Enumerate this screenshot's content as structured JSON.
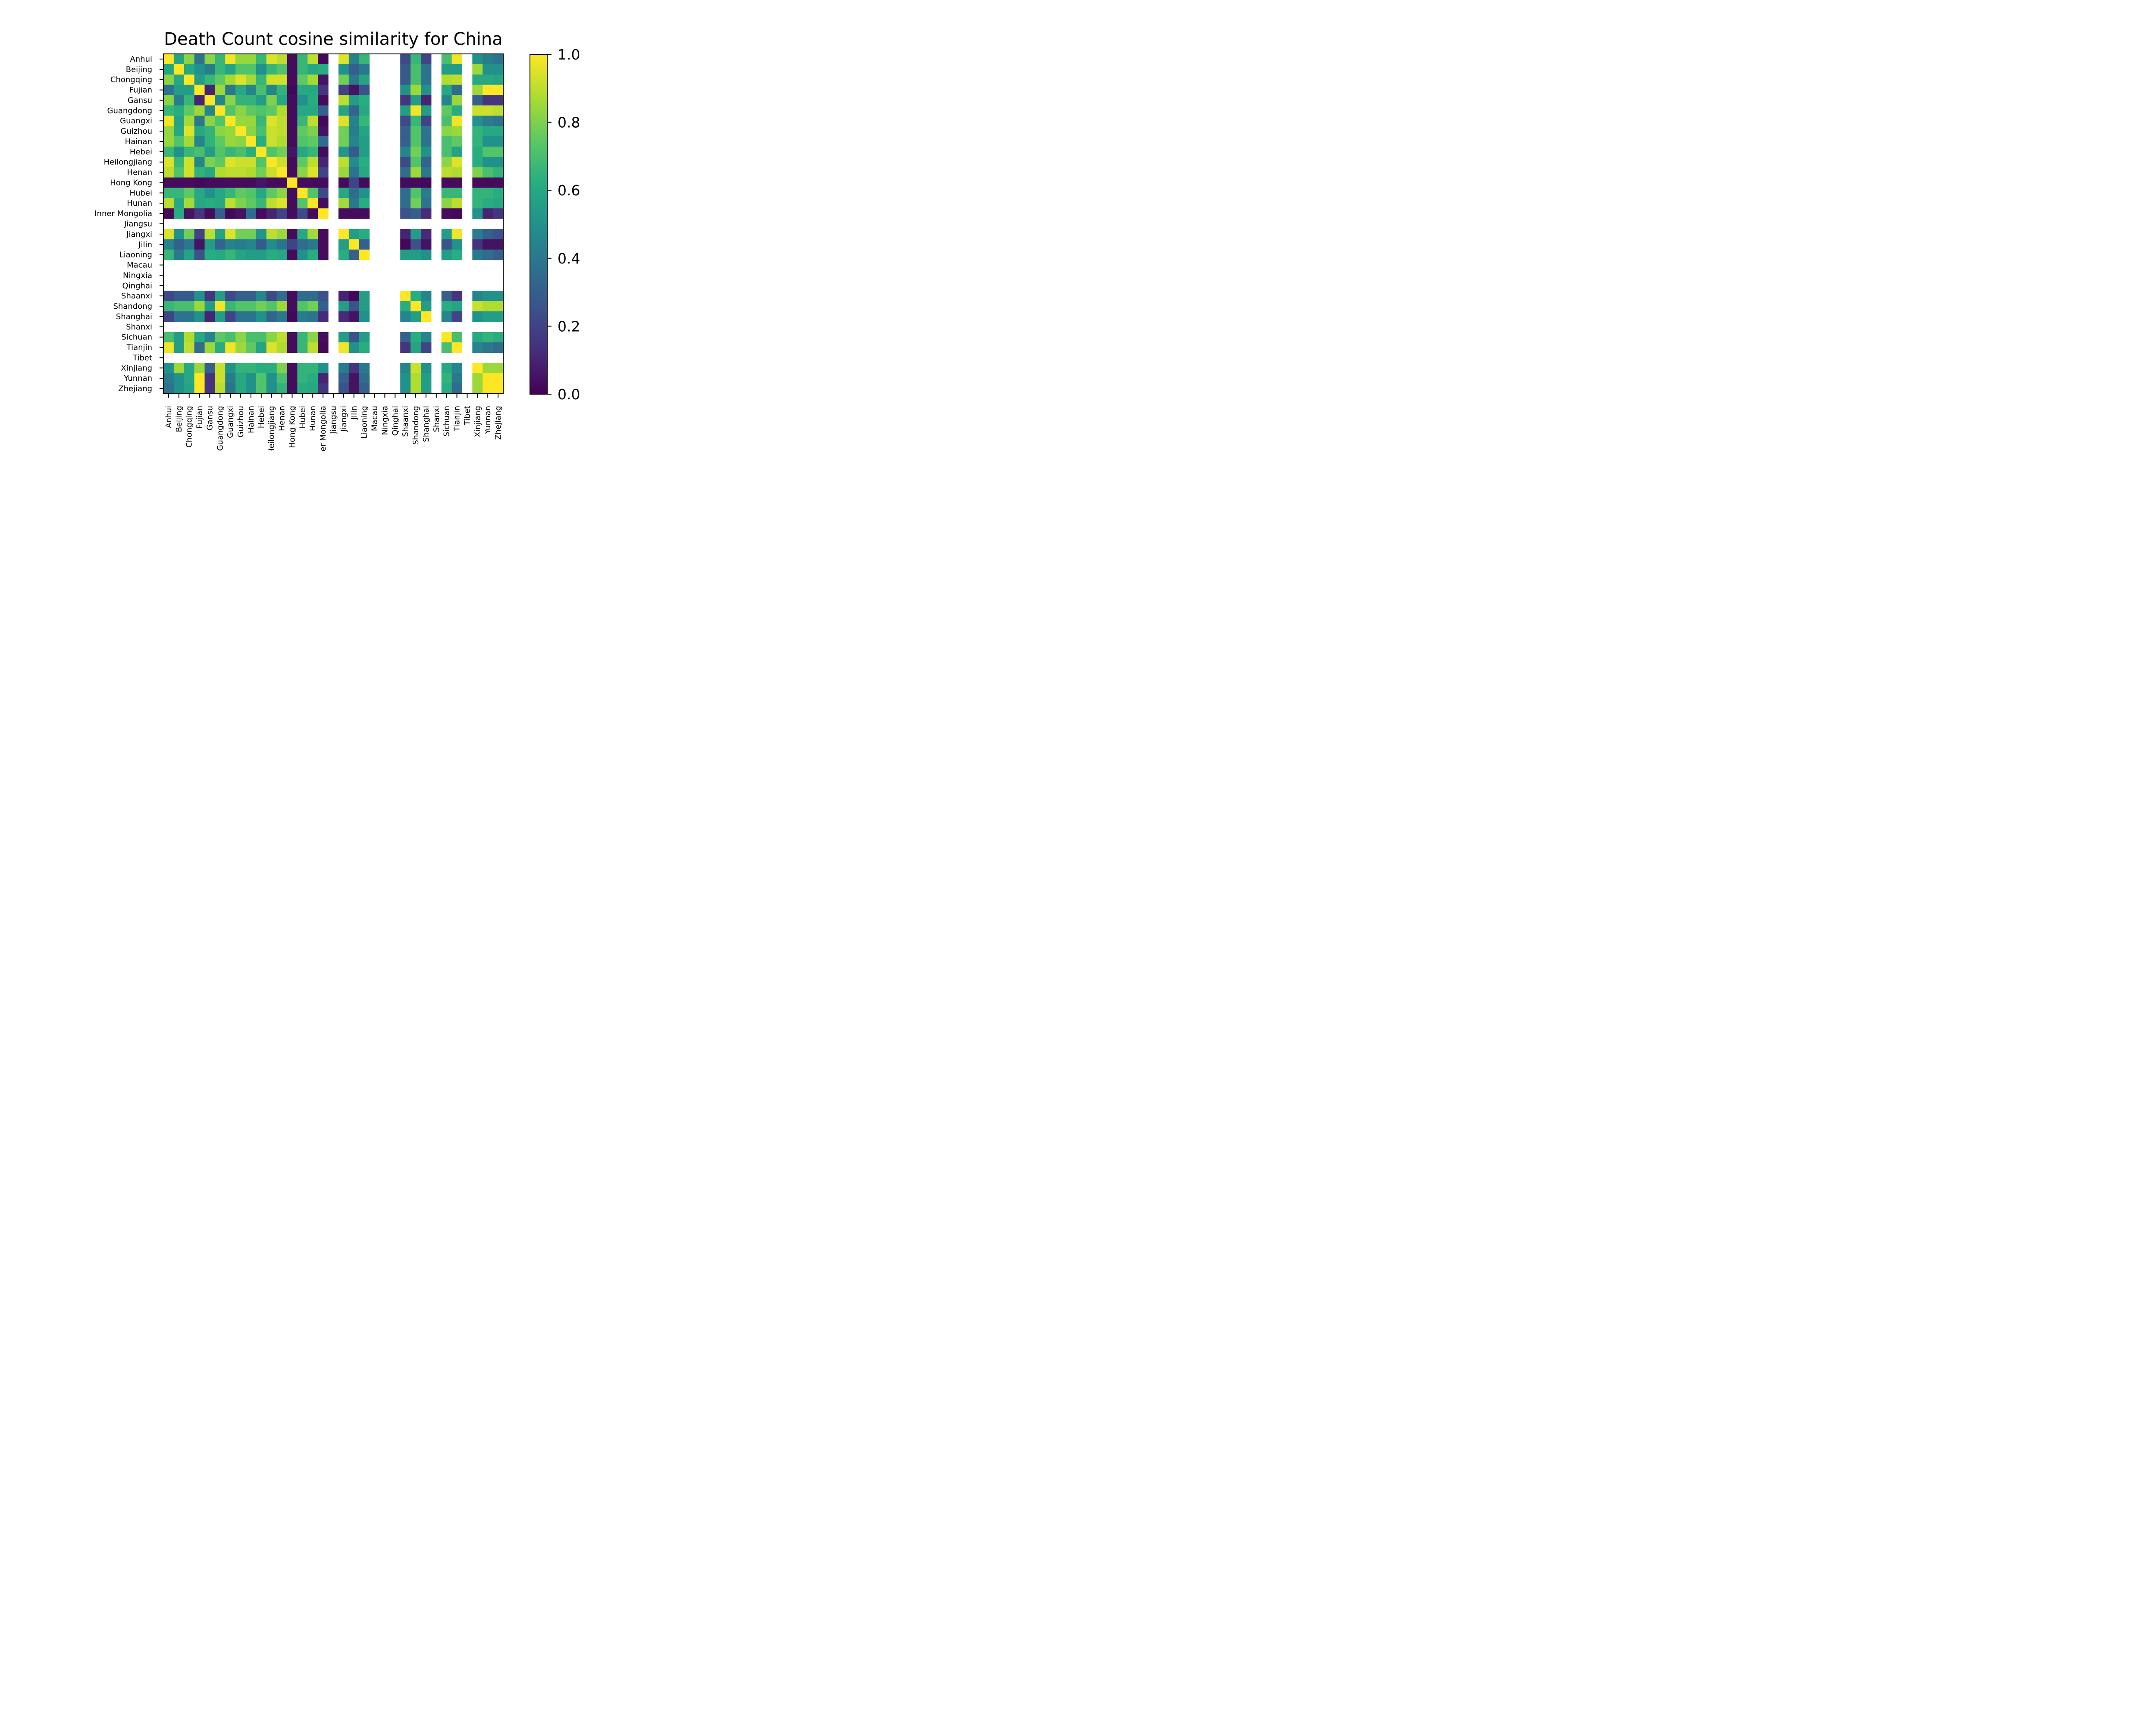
{
  "chart_data": {
    "type": "heatmap",
    "title": "Death Count cosine similarity for China",
    "labels": [
      "Anhui",
      "Beijing",
      "Chongqing",
      "Fujian",
      "Gansu",
      "Guangdong",
      "Guangxi",
      "Guizhou",
      "Hainan",
      "Hebei",
      "Heilongjiang",
      "Henan",
      "Hong Kong",
      "Hubei",
      "Hunan",
      "Inner Mongolia",
      "Jiangsu",
      "Jiangxi",
      "Jilin",
      "Liaoning",
      "Macau",
      "Ningxia",
      "Qinghai",
      "Shaanxi",
      "Shandong",
      "Shanghai",
      "Shanxi",
      "Sichuan",
      "Tianjin",
      "Tibet",
      "Xinjiang",
      "Yunnan",
      "Zhejiang"
    ],
    "colorbar": {
      "min": 0.0,
      "max": 1.0,
      "ticks": [
        "0.0",
        "0.2",
        "0.4",
        "0.6",
        "0.8",
        "1.0"
      ]
    },
    "colormap": "viridis",
    "missing_rows": [
      "Jiangsu",
      "Macau",
      "Ningxia",
      "Qinghai",
      "Shanxi",
      "Tibet"
    ],
    "values": [
      [
        1.0,
        0.58,
        0.82,
        0.38,
        0.82,
        0.66,
        0.98,
        0.84,
        0.84,
        0.66,
        0.95,
        0.9,
        0.03,
        0.66,
        0.9,
        0.02,
        null,
        0.95,
        0.44,
        0.66,
        null,
        null,
        null,
        0.22,
        0.66,
        0.2,
        null,
        0.7,
        0.98,
        null,
        0.5,
        0.42,
        0.38
      ],
      [
        0.58,
        1.0,
        0.6,
        0.5,
        0.42,
        0.66,
        0.58,
        0.72,
        0.72,
        0.5,
        0.66,
        0.72,
        0.03,
        0.66,
        0.6,
        0.62,
        null,
        0.5,
        0.3,
        0.4,
        null,
        null,
        null,
        0.28,
        0.7,
        0.38,
        null,
        0.55,
        0.55,
        null,
        0.85,
        0.5,
        0.5
      ],
      [
        0.82,
        0.6,
        1.0,
        0.55,
        0.66,
        0.75,
        0.86,
        0.95,
        0.86,
        0.66,
        0.93,
        0.93,
        0.03,
        0.75,
        0.86,
        0.05,
        null,
        0.78,
        0.4,
        0.58,
        null,
        null,
        null,
        0.28,
        0.7,
        0.38,
        null,
        0.88,
        0.9,
        null,
        0.6,
        0.6,
        0.58
      ],
      [
        0.38,
        0.55,
        0.55,
        1.0,
        0.1,
        0.85,
        0.4,
        0.6,
        0.45,
        0.7,
        0.45,
        0.65,
        0.02,
        0.6,
        0.6,
        0.15,
        null,
        0.2,
        0.05,
        0.25,
        null,
        null,
        null,
        0.5,
        0.85,
        0.5,
        null,
        0.6,
        0.35,
        null,
        0.85,
        1.0,
        1.0
      ],
      [
        0.82,
        0.42,
        0.66,
        0.1,
        1.0,
        0.45,
        0.82,
        0.65,
        0.65,
        0.55,
        0.8,
        0.6,
        0.03,
        0.5,
        0.62,
        0.03,
        null,
        0.9,
        0.55,
        0.62,
        null,
        null,
        null,
        0.15,
        0.55,
        0.1,
        null,
        0.45,
        0.85,
        null,
        0.3,
        0.15,
        0.15
      ],
      [
        0.66,
        0.62,
        0.75,
        0.85,
        0.45,
        1.0,
        0.72,
        0.82,
        0.75,
        0.72,
        0.75,
        0.88,
        0.03,
        0.6,
        0.6,
        0.3,
        null,
        0.58,
        0.32,
        0.6,
        null,
        null,
        null,
        0.55,
        0.98,
        0.55,
        null,
        0.75,
        0.62,
        null,
        0.92,
        0.92,
        0.9
      ],
      [
        0.98,
        0.58,
        0.86,
        0.4,
        0.82,
        0.72,
        1.0,
        0.84,
        0.84,
        0.66,
        0.95,
        0.9,
        0.03,
        0.66,
        0.9,
        0.02,
        null,
        0.95,
        0.44,
        0.66,
        null,
        null,
        null,
        0.22,
        0.66,
        0.2,
        null,
        0.7,
        0.98,
        null,
        0.5,
        0.42,
        0.38
      ],
      [
        0.84,
        0.6,
        0.95,
        0.6,
        0.65,
        0.82,
        0.84,
        1.0,
        0.82,
        0.7,
        0.92,
        0.9,
        0.03,
        0.75,
        0.8,
        0.05,
        null,
        0.78,
        0.42,
        0.58,
        null,
        null,
        null,
        0.3,
        0.72,
        0.38,
        null,
        0.82,
        0.85,
        null,
        0.65,
        0.6,
        0.6
      ],
      [
        0.84,
        0.72,
        0.86,
        0.45,
        0.65,
        0.75,
        0.84,
        0.82,
        1.0,
        0.62,
        0.92,
        0.88,
        0.03,
        0.72,
        0.75,
        0.35,
        null,
        0.78,
        0.45,
        0.55,
        null,
        null,
        null,
        0.3,
        0.72,
        0.38,
        null,
        0.7,
        0.75,
        null,
        0.65,
        0.5,
        0.5
      ],
      [
        0.66,
        0.5,
        0.66,
        0.7,
        0.55,
        0.72,
        0.66,
        0.7,
        0.62,
        1.0,
        0.72,
        0.78,
        0.06,
        0.6,
        0.66,
        0.03,
        null,
        0.52,
        0.28,
        0.55,
        null,
        null,
        null,
        0.45,
        0.78,
        0.5,
        null,
        0.7,
        0.58,
        null,
        0.62,
        0.72,
        0.72
      ],
      [
        0.95,
        0.66,
        0.93,
        0.45,
        0.8,
        0.75,
        0.95,
        0.92,
        0.92,
        0.72,
        1.0,
        0.92,
        0.03,
        0.75,
        0.9,
        0.1,
        null,
        0.9,
        0.48,
        0.62,
        null,
        null,
        null,
        0.22,
        0.72,
        0.32,
        null,
        0.82,
        0.95,
        null,
        0.62,
        0.5,
        0.5
      ],
      [
        0.9,
        0.72,
        0.93,
        0.65,
        0.6,
        0.88,
        0.9,
        0.9,
        0.88,
        0.78,
        0.92,
        1.0,
        0.03,
        0.82,
        0.95,
        0.2,
        null,
        0.85,
        0.38,
        0.6,
        null,
        null,
        null,
        0.35,
        0.85,
        0.4,
        null,
        0.9,
        0.88,
        null,
        0.8,
        0.7,
        0.65
      ],
      [
        0.03,
        0.03,
        0.03,
        0.02,
        0.03,
        0.03,
        0.03,
        0.03,
        0.03,
        0.06,
        0.03,
        0.03,
        1.0,
        0.03,
        0.03,
        0.03,
        null,
        0.03,
        0.2,
        0.03,
        null,
        null,
        null,
        0.03,
        0.03,
        0.02,
        null,
        0.03,
        0.03,
        null,
        0.03,
        0.03,
        0.03
      ],
      [
        0.66,
        0.66,
        0.75,
        0.6,
        0.5,
        0.6,
        0.66,
        0.75,
        0.72,
        0.6,
        0.75,
        0.82,
        0.03,
        1.0,
        0.72,
        0.22,
        null,
        0.6,
        0.35,
        0.5,
        null,
        null,
        null,
        0.35,
        0.72,
        0.42,
        null,
        0.66,
        0.66,
        null,
        0.65,
        0.65,
        0.62
      ],
      [
        0.9,
        0.6,
        0.86,
        0.6,
        0.62,
        0.6,
        0.9,
        0.8,
        0.75,
        0.66,
        0.9,
        0.95,
        0.03,
        0.72,
        1.0,
        0.03,
        null,
        0.86,
        0.4,
        0.62,
        null,
        null,
        null,
        0.35,
        0.78,
        0.38,
        null,
        0.82,
        0.9,
        null,
        0.65,
        0.62,
        0.6
      ],
      [
        0.02,
        0.62,
        0.05,
        0.15,
        0.03,
        0.3,
        0.02,
        0.05,
        0.35,
        0.03,
        0.1,
        0.2,
        0.03,
        0.22,
        0.03,
        1.0,
        null,
        0.03,
        0.03,
        0.03,
        null,
        null,
        null,
        0.25,
        0.3,
        0.12,
        null,
        0.03,
        0.02,
        null,
        0.5,
        0.1,
        0.15
      ],
      [
        null,
        null,
        null,
        null,
        null,
        null,
        null,
        null,
        null,
        null,
        null,
        null,
        null,
        null,
        null,
        null,
        null,
        null,
        null,
        null,
        null,
        null,
        null,
        null,
        null,
        null,
        null,
        null,
        null,
        null,
        null,
        null,
        null
      ],
      [
        0.95,
        0.5,
        0.78,
        0.2,
        0.9,
        0.58,
        0.95,
        0.78,
        0.78,
        0.52,
        0.9,
        0.85,
        0.03,
        0.6,
        0.86,
        0.03,
        null,
        1.0,
        0.55,
        0.62,
        null,
        null,
        null,
        0.1,
        0.55,
        0.12,
        null,
        0.55,
        0.98,
        null,
        0.42,
        0.3,
        0.25
      ],
      [
        0.44,
        0.3,
        0.4,
        0.05,
        0.55,
        0.32,
        0.44,
        0.42,
        0.45,
        0.28,
        0.48,
        0.38,
        0.2,
        0.35,
        0.4,
        0.03,
        null,
        0.55,
        1.0,
        0.3,
        null,
        null,
        null,
        0.02,
        0.25,
        0.05,
        null,
        0.25,
        0.5,
        null,
        0.15,
        0.05,
        0.05
      ],
      [
        0.66,
        0.4,
        0.58,
        0.25,
        0.62,
        0.6,
        0.66,
        0.58,
        0.55,
        0.55,
        0.62,
        0.6,
        0.03,
        0.5,
        0.62,
        0.03,
        null,
        0.62,
        0.3,
        1.0,
        null,
        null,
        null,
        0.55,
        0.55,
        0.5,
        null,
        0.55,
        0.62,
        null,
        0.4,
        0.35,
        0.3
      ],
      [
        null,
        null,
        null,
        null,
        null,
        null,
        null,
        null,
        null,
        null,
        null,
        null,
        null,
        null,
        null,
        null,
        null,
        null,
        null,
        null,
        null,
        null,
        null,
        null,
        null,
        null,
        null,
        null,
        null,
        null,
        null,
        null,
        null
      ],
      [
        null,
        null,
        null,
        null,
        null,
        null,
        null,
        null,
        null,
        null,
        null,
        null,
        null,
        null,
        null,
        null,
        null,
        null,
        null,
        null,
        null,
        null,
        null,
        null,
        null,
        null,
        null,
        null,
        null,
        null,
        null,
        null,
        null
      ],
      [
        null,
        null,
        null,
        null,
        null,
        null,
        null,
        null,
        null,
        null,
        null,
        null,
        null,
        null,
        null,
        null,
        null,
        null,
        null,
        null,
        null,
        null,
        null,
        null,
        null,
        null,
        null,
        null,
        null,
        null,
        null,
        null,
        null
      ],
      [
        0.22,
        0.28,
        0.28,
        0.5,
        0.15,
        0.55,
        0.22,
        0.3,
        0.3,
        0.45,
        0.22,
        0.35,
        0.03,
        0.35,
        0.35,
        0.25,
        null,
        0.1,
        0.02,
        0.55,
        null,
        null,
        null,
        1.0,
        0.62,
        0.45,
        null,
        0.3,
        0.15,
        null,
        0.45,
        0.5,
        0.5
      ],
      [
        0.66,
        0.7,
        0.7,
        0.85,
        0.55,
        0.98,
        0.66,
        0.72,
        0.72,
        0.78,
        0.72,
        0.85,
        0.03,
        0.72,
        0.78,
        0.3,
        null,
        0.55,
        0.25,
        0.55,
        null,
        null,
        null,
        0.62,
        1.0,
        0.55,
        null,
        0.62,
        0.58,
        null,
        0.92,
        0.88,
        0.88
      ],
      [
        0.2,
        0.38,
        0.38,
        0.5,
        0.1,
        0.55,
        0.2,
        0.38,
        0.38,
        0.5,
        0.32,
        0.4,
        0.02,
        0.42,
        0.38,
        0.12,
        null,
        0.12,
        0.05,
        0.5,
        null,
        null,
        null,
        0.45,
        0.55,
        1.0,
        null,
        0.45,
        0.2,
        null,
        0.5,
        0.55,
        0.55
      ],
      [
        null,
        null,
        null,
        null,
        null,
        null,
        null,
        null,
        null,
        null,
        null,
        null,
        null,
        null,
        null,
        null,
        null,
        null,
        null,
        null,
        null,
        null,
        null,
        null,
        null,
        null,
        null,
        null,
        null,
        null,
        null,
        null,
        null
      ],
      [
        0.7,
        0.55,
        0.88,
        0.6,
        0.45,
        0.75,
        0.7,
        0.82,
        0.7,
        0.7,
        0.82,
        0.9,
        0.03,
        0.66,
        0.82,
        0.03,
        null,
        0.55,
        0.25,
        0.55,
        null,
        null,
        null,
        0.3,
        0.62,
        0.45,
        null,
        1.0,
        0.7,
        null,
        0.6,
        0.65,
        0.62
      ],
      [
        0.98,
        0.55,
        0.9,
        0.35,
        0.85,
        0.62,
        0.98,
        0.85,
        0.75,
        0.58,
        0.95,
        0.88,
        0.03,
        0.66,
        0.9,
        0.02,
        null,
        0.98,
        0.5,
        0.62,
        null,
        null,
        null,
        0.15,
        0.58,
        0.2,
        null,
        0.7,
        1.0,
        null,
        0.45,
        0.4,
        0.35
      ],
      [
        null,
        null,
        null,
        null,
        null,
        null,
        null,
        null,
        null,
        null,
        null,
        null,
        null,
        null,
        null,
        null,
        null,
        null,
        null,
        null,
        null,
        null,
        null,
        null,
        null,
        null,
        null,
        null,
        null,
        null,
        null,
        null,
        null
      ],
      [
        0.5,
        0.85,
        0.6,
        0.85,
        0.3,
        0.92,
        0.5,
        0.65,
        0.65,
        0.62,
        0.62,
        0.8,
        0.03,
        0.65,
        0.65,
        0.5,
        null,
        0.42,
        0.15,
        0.4,
        null,
        null,
        null,
        0.45,
        0.92,
        0.5,
        null,
        0.6,
        0.45,
        null,
        1.0,
        0.85,
        0.85
      ],
      [
        0.42,
        0.5,
        0.6,
        1.0,
        0.15,
        0.92,
        0.42,
        0.6,
        0.5,
        0.72,
        0.5,
        0.7,
        0.03,
        0.65,
        0.62,
        0.1,
        null,
        0.3,
        0.05,
        0.35,
        null,
        null,
        null,
        0.5,
        0.88,
        0.55,
        null,
        0.65,
        0.4,
        null,
        0.85,
        1.0,
        1.0
      ],
      [
        0.38,
        0.5,
        0.58,
        1.0,
        0.15,
        0.9,
        0.38,
        0.6,
        0.5,
        0.72,
        0.5,
        0.65,
        0.03,
        0.62,
        0.6,
        0.15,
        null,
        0.25,
        0.05,
        0.3,
        null,
        null,
        null,
        0.5,
        0.88,
        0.55,
        null,
        0.62,
        0.35,
        null,
        0.85,
        1.0,
        1.0
      ]
    ]
  }
}
